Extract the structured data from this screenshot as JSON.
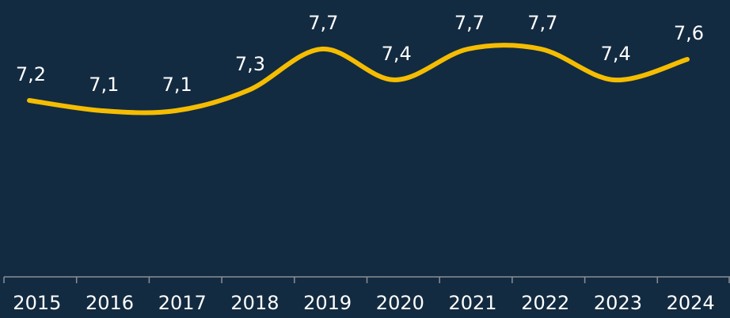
{
  "chart_data": {
    "type": "line",
    "categories": [
      "2015",
      "2016",
      "2017",
      "2018",
      "2019",
      "2020",
      "2021",
      "2022",
      "2023",
      "2024"
    ],
    "values": [
      7.2,
      7.1,
      7.1,
      7.3,
      7.7,
      7.4,
      7.7,
      7.7,
      7.4,
      7.6
    ],
    "value_labels": [
      "7,2",
      "7,1",
      "7,1",
      "7,3",
      "7,7",
      "7,4",
      "7,7",
      "7,7",
      "7,4",
      "7,6"
    ],
    "color": "#f5bd02"
  }
}
